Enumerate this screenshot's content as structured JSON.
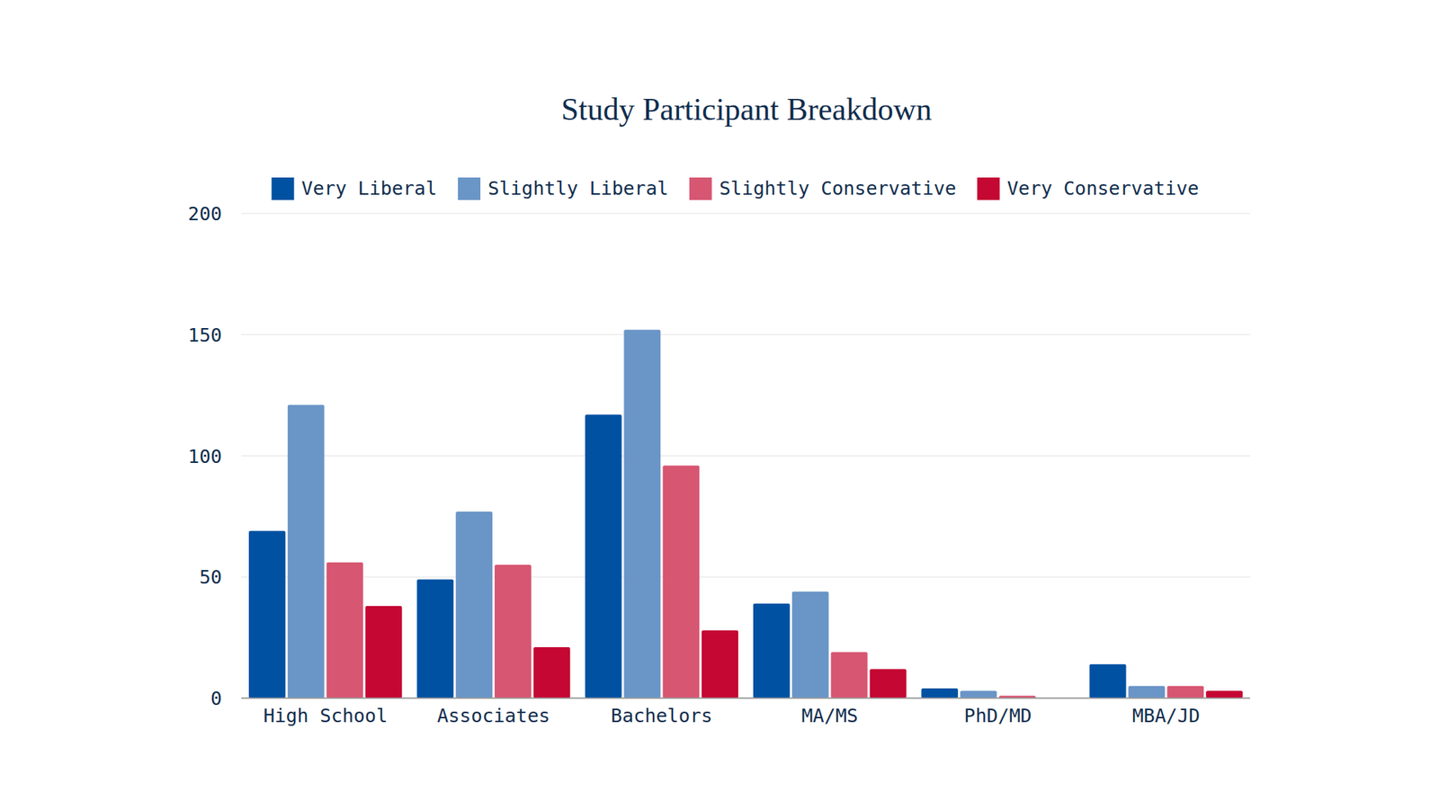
{
  "chart_data": {
    "type": "bar",
    "title": "Study Participant Breakdown",
    "categories": [
      "High School",
      "Associates",
      "Bachelors",
      "MA/MS",
      "PhD/MD",
      "MBA/JD"
    ],
    "series": [
      {
        "name": "Very Liberal",
        "color": "#0051a2",
        "values": [
          69,
          49,
          117,
          39,
          4,
          14
        ]
      },
      {
        "name": "Slightly Liberal",
        "color": "#6a95c7",
        "values": [
          121,
          77,
          152,
          44,
          3,
          5
        ]
      },
      {
        "name": "Slightly Conservative",
        "color": "#d75672",
        "values": [
          56,
          55,
          96,
          19,
          1,
          5
        ]
      },
      {
        "name": "Very Conservative",
        "color": "#c40733",
        "values": [
          38,
          21,
          28,
          12,
          0,
          3
        ]
      }
    ],
    "ylim": [
      0,
      200
    ],
    "yticks": [
      0,
      50,
      100,
      150,
      200
    ],
    "grid": true,
    "legend": "top"
  }
}
